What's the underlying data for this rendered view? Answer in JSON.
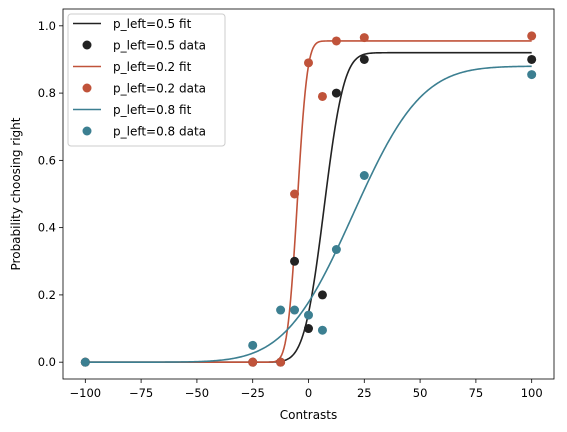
{
  "chart_data": {
    "type": "scatter",
    "xlabel": "Contrasts",
    "ylabel": "Probability choosing right",
    "xlim": [
      -110,
      110
    ],
    "ylim": [
      -0.05,
      1.05
    ],
    "xticks": [
      -100,
      -75,
      -50,
      -25,
      0,
      25,
      50,
      75,
      100
    ],
    "xtick_labels": [
      "−100",
      "−75",
      "−50",
      "−25",
      "0",
      "25",
      "50",
      "75",
      "100"
    ],
    "yticks": [
      0.0,
      0.2,
      0.4,
      0.6,
      0.8,
      1.0
    ],
    "ytick_labels": [
      "0.0",
      "0.2",
      "0.4",
      "0.6",
      "0.8",
      "1.0"
    ],
    "grid": false,
    "legend_position": "top-left",
    "x_contrasts": [
      -100,
      -25,
      -12.5,
      -6.25,
      0,
      6.25,
      12.5,
      25,
      100
    ],
    "series": [
      {
        "fit_name": "p_left=0.5 fit",
        "data_name": "p_left=0.5 data",
        "color": "#222222",
        "y": [
          0.0,
          0.0,
          0.0,
          0.3,
          0.1,
          0.2,
          0.8,
          0.9,
          0.9
        ],
        "fit": {
          "bias": 7,
          "threshold": 7,
          "lapse_low": 0.0,
          "lapse_high": 0.08
        }
      },
      {
        "fit_name": "p_left=0.2 fit",
        "data_name": "p_left=0.2 data",
        "color": "#c0533a",
        "y": [
          0.0,
          0.0,
          0.0,
          0.5,
          0.89,
          0.79,
          0.955,
          0.965,
          0.97
        ],
        "fit": {
          "bias": -5,
          "threshold": 3.5,
          "lapse_low": 0.0,
          "lapse_high": 0.045
        }
      },
      {
        "fit_name": "p_left=0.8 fit",
        "data_name": "p_left=0.8 data",
        "color": "#3c7f91",
        "y": [
          0.0,
          0.05,
          0.155,
          0.155,
          0.14,
          0.095,
          0.335,
          0.555,
          0.855
        ],
        "fit": {
          "bias": 20,
          "threshold": 24,
          "lapse_low": 0.0,
          "lapse_high": 0.12
        }
      }
    ]
  }
}
